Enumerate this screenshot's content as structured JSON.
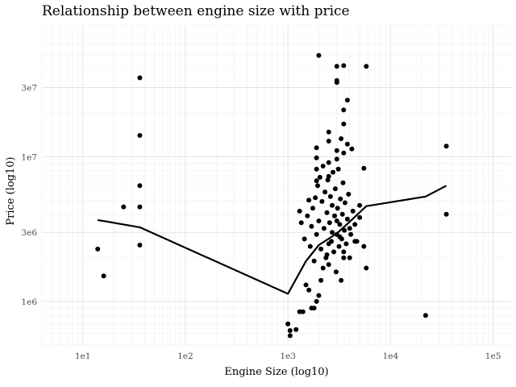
{
  "chart_data": {
    "type": "scatter",
    "title": "Relationship between engine size with price",
    "xlabel": "Engine Size (log10)",
    "ylabel": "Price (log10)",
    "x_scale": "log10",
    "y_scale": "log10",
    "xlim": [
      4,
      150000
    ],
    "ylim": [
      500000,
      80000000
    ],
    "grid": true,
    "x_ticks": [
      {
        "value": 10,
        "label": "1e1"
      },
      {
        "value": 100,
        "label": "1e2"
      },
      {
        "value": 1000,
        "label": "1e3"
      },
      {
        "value": 10000,
        "label": "1e4"
      },
      {
        "value": 100000,
        "label": "1e5"
      }
    ],
    "y_ticks": [
      {
        "value": 1000000,
        "label": "1e6"
      },
      {
        "value": 3000000,
        "label": "3e6"
      },
      {
        "value": 10000000,
        "label": "1e7"
      },
      {
        "value": 30000000,
        "label": "3e7"
      }
    ],
    "series": [
      {
        "type": "scatter",
        "color": "#000000",
        "points": [
          [
            14,
            2300000
          ],
          [
            16,
            1500000
          ],
          [
            25,
            4500000
          ],
          [
            36,
            35000000
          ],
          [
            36,
            14000000
          ],
          [
            36,
            6300000
          ],
          [
            36,
            4500000
          ],
          [
            36,
            2450000
          ],
          [
            22000,
            800000
          ],
          [
            35000,
            11800000
          ],
          [
            35000,
            4000000
          ],
          [
            1000,
            700000
          ],
          [
            1050,
            580000
          ],
          [
            1050,
            630000
          ],
          [
            1200,
            640000
          ],
          [
            1300,
            850000
          ],
          [
            1400,
            850000
          ],
          [
            1500,
            1300000
          ],
          [
            1600,
            1200000
          ],
          [
            1700,
            900000
          ],
          [
            1800,
            900000
          ],
          [
            1900,
            1000000
          ],
          [
            2000,
            1100000
          ],
          [
            2100,
            1400000
          ],
          [
            2200,
            1700000
          ],
          [
            2400,
            2100000
          ],
          [
            2500,
            2500000
          ],
          [
            2700,
            3000000
          ],
          [
            3000,
            3600000
          ],
          [
            3200,
            2800000
          ],
          [
            3500,
            2000000
          ],
          [
            4000,
            3200000
          ],
          [
            4500,
            2600000
          ],
          [
            5000,
            3800000
          ],
          [
            5500,
            2400000
          ],
          [
            5800,
            1700000
          ],
          [
            1300,
            4200000
          ],
          [
            1350,
            3500000
          ],
          [
            1450,
            2700000
          ],
          [
            1550,
            3900000
          ],
          [
            1600,
            5000000
          ],
          [
            1650,
            2400000
          ],
          [
            1700,
            3300000
          ],
          [
            1750,
            4400000
          ],
          [
            1800,
            1900000
          ],
          [
            1850,
            5200000
          ],
          [
            1900,
            2900000
          ],
          [
            1950,
            6300000
          ],
          [
            2000,
            3600000
          ],
          [
            2050,
            7200000
          ],
          [
            2100,
            2300000
          ],
          [
            2150,
            4900000
          ],
          [
            2200,
            8600000
          ],
          [
            2250,
            3200000
          ],
          [
            2300,
            5700000
          ],
          [
            2350,
            2000000
          ],
          [
            2400,
            4100000
          ],
          [
            2450,
            6900000
          ],
          [
            2500,
            1800000
          ],
          [
            2550,
            3500000
          ],
          [
            2600,
            5300000
          ],
          [
            2650,
            2600000
          ],
          [
            2700,
            4600000
          ],
          [
            2750,
            7800000
          ],
          [
            2800,
            2200000
          ],
          [
            2850,
            3900000
          ],
          [
            2900,
            6000000
          ],
          [
            2950,
            1600000
          ],
          [
            3000,
            2900000
          ],
          [
            3050,
            4400000
          ],
          [
            3100,
            8200000
          ],
          [
            3150,
            2400000
          ],
          [
            3200,
            3400000
          ],
          [
            3250,
            5100000
          ],
          [
            3300,
            1400000
          ],
          [
            3350,
            2700000
          ],
          [
            3400,
            4000000
          ],
          [
            3450,
            6600000
          ],
          [
            3500,
            2200000
          ],
          [
            3550,
            3100000
          ],
          [
            3600,
            4800000
          ],
          [
            3700,
            2500000
          ],
          [
            3800,
            3700000
          ],
          [
            3900,
            5500000
          ],
          [
            4000,
            2000000
          ],
          [
            4100,
            2900000
          ],
          [
            4300,
            4200000
          ],
          [
            4500,
            3400000
          ],
          [
            4700,
            2600000
          ],
          [
            5000,
            4600000
          ],
          [
            1900,
            6800000
          ],
          [
            1900,
            8200000
          ],
          [
            1900,
            9800000
          ],
          [
            1900,
            11500000
          ],
          [
            2500,
            7300000
          ],
          [
            2500,
            9100000
          ],
          [
            2500,
            12800000
          ],
          [
            2500,
            14800000
          ],
          [
            3000,
            11000000
          ],
          [
            3000,
            9600000
          ],
          [
            3300,
            13300000
          ],
          [
            3500,
            10600000
          ],
          [
            3500,
            16800000
          ],
          [
            3500,
            21000000
          ],
          [
            3800,
            12200000
          ],
          [
            3800,
            24500000
          ],
          [
            4200,
            11300000
          ],
          [
            5500,
            8300000
          ],
          [
            2000,
            50000000
          ],
          [
            3000,
            42000000
          ],
          [
            3500,
            42500000
          ],
          [
            5800,
            42000000
          ],
          [
            3000,
            33500000
          ],
          [
            3000,
            32500000
          ]
        ]
      },
      {
        "type": "line",
        "color": "#000000",
        "points": [
          [
            14,
            3650000
          ],
          [
            36,
            3250000
          ],
          [
            1000,
            1130000
          ],
          [
            1500,
            1900000
          ],
          [
            2000,
            2450000
          ],
          [
            3000,
            2950000
          ],
          [
            4000,
            3550000
          ],
          [
            5800,
            4550000
          ],
          [
            22000,
            5300000
          ],
          [
            35000,
            6300000
          ]
        ]
      }
    ]
  }
}
